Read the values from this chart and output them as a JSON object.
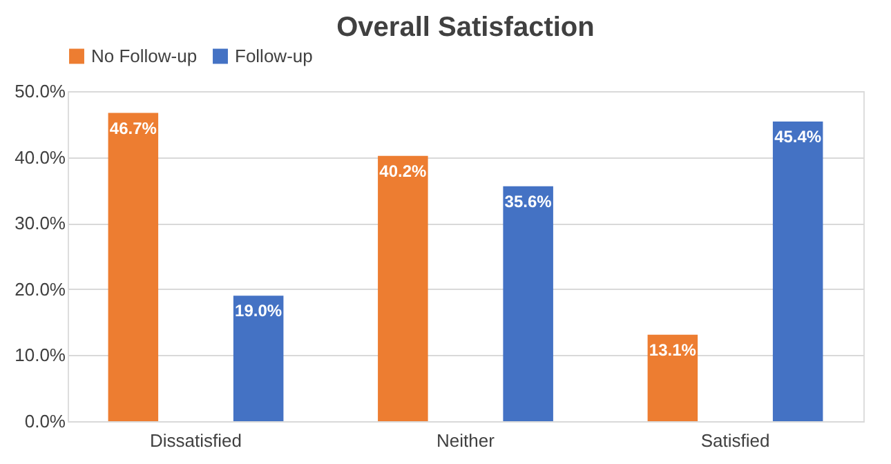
{
  "chart_data": {
    "type": "bar",
    "title": "Overall Satisfaction",
    "categories": [
      "Dissatisfied",
      "Neither",
      "Satisfied"
    ],
    "series": [
      {
        "name": "No Follow-up",
        "color": "#ed7d31",
        "values": [
          46.7,
          40.2,
          13.1
        ],
        "value_labels": [
          "46.7%",
          "40.2%",
          "13.1%"
        ]
      },
      {
        "name": "Follow-up",
        "color": "#4472c4",
        "values": [
          19.0,
          35.6,
          45.4
        ],
        "value_labels": [
          "19.0%",
          "35.6%",
          "45.4%"
        ]
      }
    ],
    "ylim": [
      0,
      50
    ],
    "yticks": [
      {
        "value": 0,
        "label": "0.0%"
      },
      {
        "value": 10,
        "label": "10.0%"
      },
      {
        "value": 20,
        "label": "20.0%"
      },
      {
        "value": 30,
        "label": "30.0%"
      },
      {
        "value": 40,
        "label": "40.0%"
      },
      {
        "value": 50,
        "label": "50.0%"
      }
    ],
    "grid": "y",
    "legend": "top"
  }
}
